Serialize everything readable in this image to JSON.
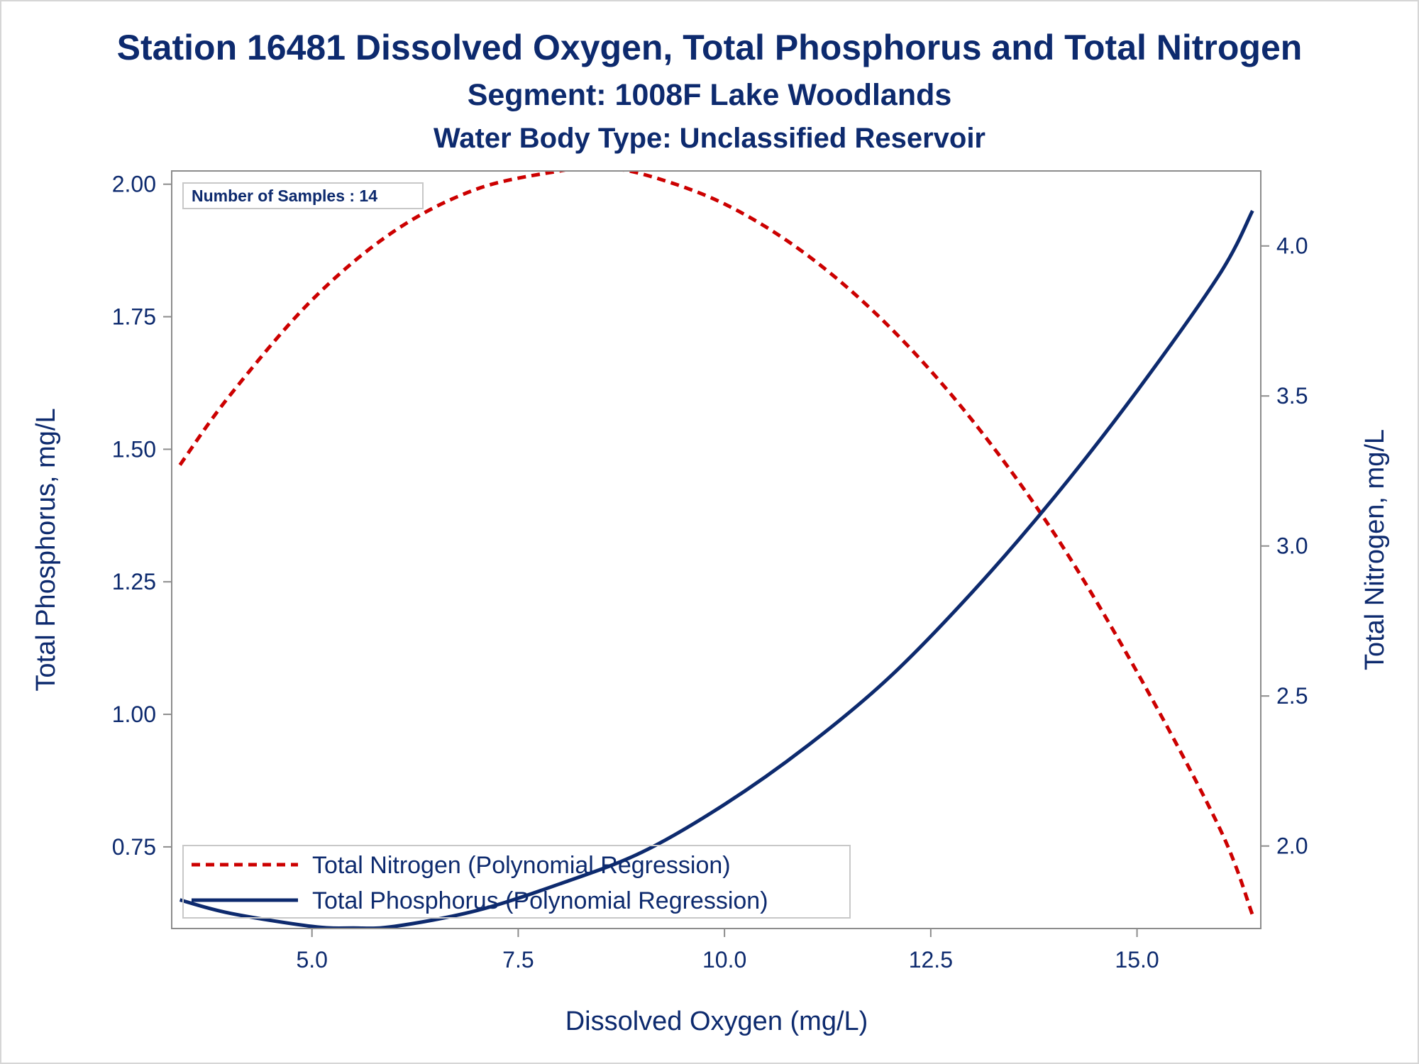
{
  "titles": {
    "line1": "Station 16481  Dissolved Oxygen, Total Phosphorus and Total Nitrogen",
    "line2": "Segment: 1008F  Lake Woodlands",
    "line3": "Water Body Type: Unclassified Reservoir"
  },
  "inset_label": "Number of Samples : 14",
  "colors": {
    "text": "#0d2a6e",
    "phosphorus": "#0d2a6e",
    "nitrogen": "#cc0000",
    "axis": "#8c8c8c",
    "frame": "#d6d6d6"
  },
  "chart_data": {
    "type": "line",
    "xlabel": "Dissolved Oxygen (mg/L)",
    "ylabel": "Total Phosphorus, mg/L",
    "y2label": "Total Nitrogen, mg/L",
    "xlim": [
      3.3,
      16.5
    ],
    "ylim": [
      0.596,
      2.025
    ],
    "y2lim": [
      1.725,
      4.25
    ],
    "x_ticks": [
      "5.0",
      "7.5",
      "10.0",
      "12.5",
      "15.0"
    ],
    "x_tick_values": [
      5.0,
      7.5,
      10.0,
      12.5,
      15.0
    ],
    "y_ticks": [
      "0.75",
      "1.00",
      "1.25",
      "1.50",
      "1.75",
      "2.00"
    ],
    "y_tick_values": [
      0.75,
      1.0,
      1.25,
      1.5,
      1.75,
      2.0
    ],
    "y2_ticks": [
      "2.0",
      "2.5",
      "3.0",
      "3.5",
      "4.0"
    ],
    "y2_tick_values": [
      2.0,
      2.5,
      3.0,
      3.5,
      4.0
    ],
    "legend_position": "bottom-left",
    "series": [
      {
        "name": "Total Nitrogen (Polynomial Regression)",
        "axis": "right",
        "style": "dashed",
        "x": [
          3.4,
          4.0,
          5.0,
          6.0,
          7.0,
          8.0,
          8.4,
          9.0,
          10.0,
          11.0,
          12.0,
          13.0,
          14.0,
          15.0,
          16.0,
          16.4
        ],
        "values": [
          3.27,
          3.5,
          3.82,
          4.05,
          4.19,
          4.25,
          4.26,
          4.24,
          4.14,
          3.97,
          3.73,
          3.42,
          3.04,
          2.58,
          2.06,
          1.77
        ]
      },
      {
        "name": "Total Phosphorus (Polynomial Regression)",
        "axis": "left",
        "style": "solid",
        "x": [
          3.4,
          4.0,
          5.0,
          5.5,
          6.0,
          7.0,
          8.0,
          9.0,
          10.0,
          11.0,
          12.0,
          13.0,
          14.0,
          15.0,
          16.0,
          16.4
        ],
        "values": [
          0.65,
          0.625,
          0.6,
          0.597,
          0.6,
          0.63,
          0.68,
          0.74,
          0.83,
          0.94,
          1.07,
          1.23,
          1.41,
          1.61,
          1.83,
          1.95
        ]
      }
    ]
  }
}
